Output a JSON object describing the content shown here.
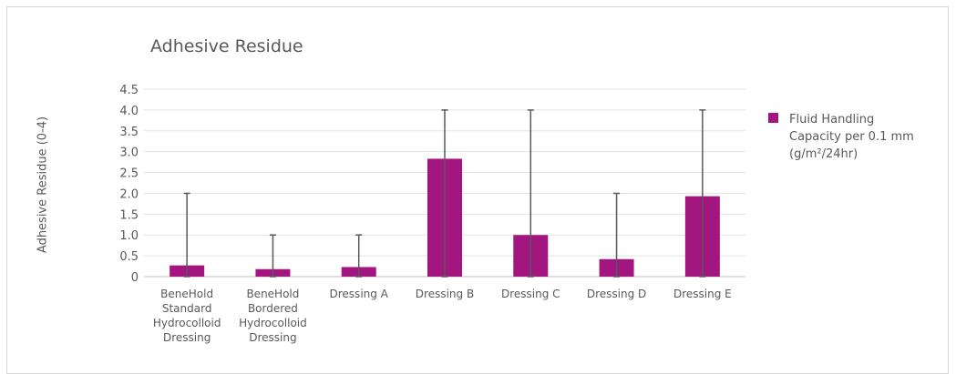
{
  "chart_data": {
    "type": "bar",
    "title": "Adhesive Residue",
    "ylabel": "Adhesive Residue (0-4)",
    "xlabel": "",
    "ylim": [
      0,
      4.5
    ],
    "yticks": [
      "0",
      "0.5",
      "1.0",
      "1.5",
      "2.0",
      "2.5",
      "3.0",
      "3.5",
      "4.0",
      "4.5"
    ],
    "grid": true,
    "legend_position": "right",
    "categories": [
      [
        "BeneHold",
        "Standard",
        "Hydrocolloid",
        "Dressing"
      ],
      [
        "BeneHold",
        "Bordered",
        "Hydrocolloid",
        "Dressing"
      ],
      [
        "Dressing A"
      ],
      [
        "Dressing B"
      ],
      [
        "Dressing C"
      ],
      [
        "Dressing D"
      ],
      [
        "Dressing E"
      ]
    ],
    "series": [
      {
        "name": "Fluid Handling Capacity per 0.1 mm (g/m²/24hr)",
        "legend_lines": [
          "Fluid Handling",
          "Capacity per 0.1 mm",
          "(g/m²/24hr)"
        ],
        "color": "#a3167f",
        "values": [
          0.27,
          0.18,
          0.23,
          2.83,
          1.0,
          0.42,
          1.93
        ],
        "error_low": [
          0,
          0,
          0,
          0,
          0,
          0,
          0
        ],
        "error_high": [
          2.0,
          1.0,
          1.0,
          4.0,
          4.0,
          2.0,
          4.0
        ]
      }
    ],
    "colors": {
      "gridline": "#e3e3e3",
      "errorbar": "#595959",
      "axis": "#bfbfbf"
    }
  }
}
